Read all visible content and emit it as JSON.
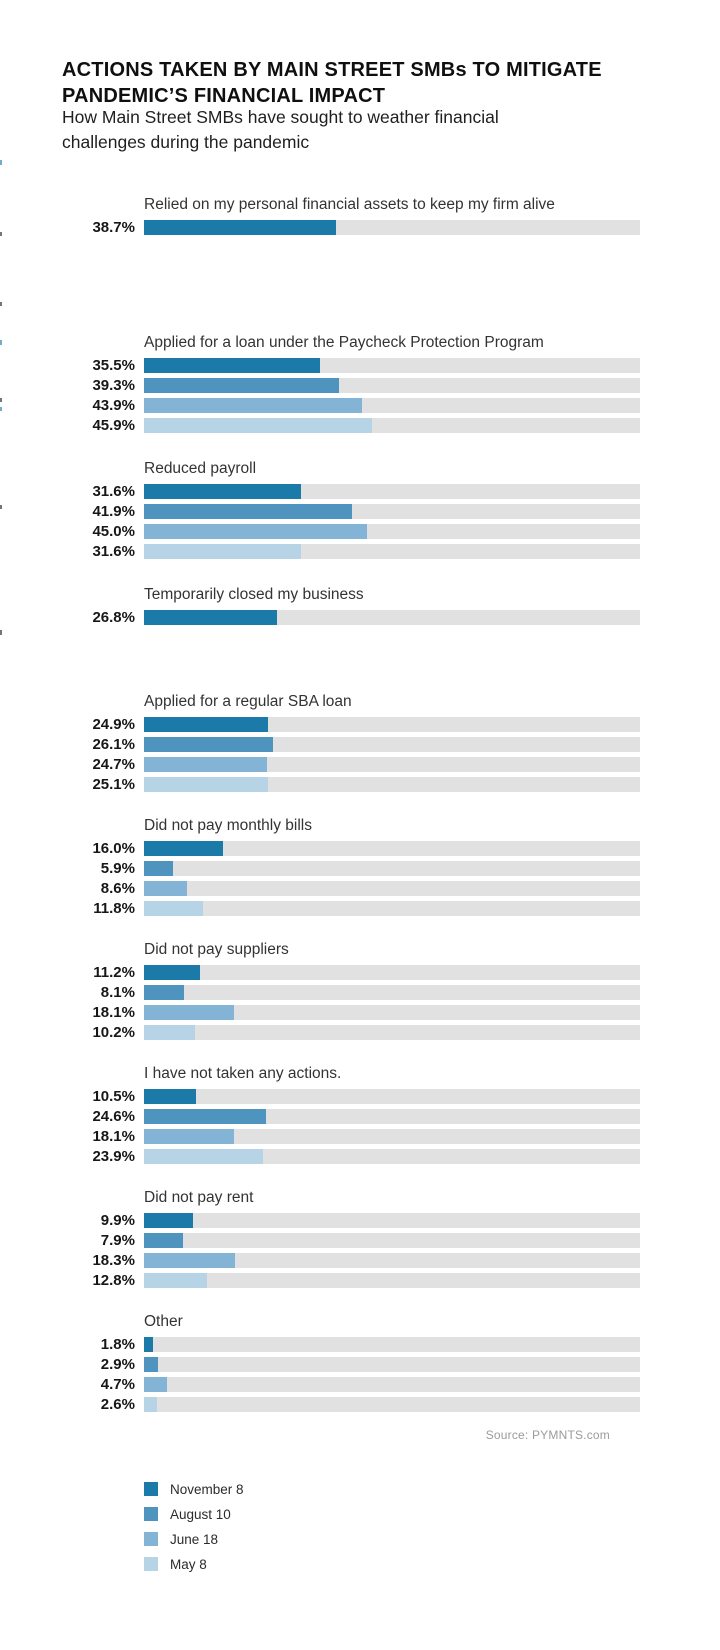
{
  "header": {
    "title_line1": "ACTIONS TAKEN BY MAIN STREET SMBs TO MITIGATE",
    "title_line2": "PANDEMIC’S FINANCIAL IMPACT",
    "subtitle_line1": "How Main Street SMBs have sought to weather financial",
    "subtitle_line2": "challenges during the pandemic"
  },
  "source": "Source: PYMNTS.com",
  "legend": {
    "items": [
      {
        "label": "November 8",
        "color": "#1b7aa8"
      },
      {
        "label": "August 10",
        "color": "#4e94be"
      },
      {
        "label": "June 18",
        "color": "#83b4d6"
      },
      {
        "label": "May 8",
        "color": "#b7d3e6"
      }
    ]
  },
  "chart_data": {
    "type": "bar",
    "orientation": "horizontal",
    "title": "Actions taken by Main Street SMBs to mitigate pandemic's financial impact",
    "value_axis": {
      "min": 0,
      "max": 100,
      "unit": "%"
    },
    "track_color": "#e1e1e1",
    "series": [
      "November 8",
      "August 10",
      "June 18",
      "May 8"
    ],
    "groups": [
      {
        "label": "Relied on my personal financial assets to keep my firm alive",
        "bars": [
          {
            "series": "November 8",
            "value": 38.7,
            "display": "38.7%"
          }
        ]
      },
      {
        "label": "Applied for a loan under the Paycheck Protection Program",
        "bars": [
          {
            "series": "November 8",
            "value": 35.5,
            "display": "35.5%"
          },
          {
            "series": "August 10",
            "value": 39.3,
            "display": "39.3%"
          },
          {
            "series": "June 18",
            "value": 43.9,
            "display": "43.9%"
          },
          {
            "series": "May 8",
            "value": 45.9,
            "display": "45.9%"
          }
        ]
      },
      {
        "label": "Reduced payroll",
        "bars": [
          {
            "series": "November 8",
            "value": 31.6,
            "display": "31.6%"
          },
          {
            "series": "August 10",
            "value": 41.9,
            "display": "41.9%"
          },
          {
            "series": "June 18",
            "value": 45.0,
            "display": "45.0%"
          },
          {
            "series": "May 8",
            "value": 31.6,
            "display": "31.6%"
          }
        ]
      },
      {
        "label": "Temporarily closed my business",
        "bars": [
          {
            "series": "November 8",
            "value": 26.8,
            "display": "26.8%"
          }
        ]
      },
      {
        "label": "Applied for a regular SBA loan",
        "bars": [
          {
            "series": "November 8",
            "value": 24.9,
            "display": "24.9%"
          },
          {
            "series": "August 10",
            "value": 26.1,
            "display": "26.1%"
          },
          {
            "series": "June 18",
            "value": 24.7,
            "display": "24.7%"
          },
          {
            "series": "May 8",
            "value": 25.1,
            "display": "25.1%"
          }
        ]
      },
      {
        "label": "Did not pay monthly bills",
        "bars": [
          {
            "series": "November 8",
            "value": 16.0,
            "display": "16.0%"
          },
          {
            "series": "August 10",
            "value": 5.9,
            "display": "5.9%"
          },
          {
            "series": "June 18",
            "value": 8.6,
            "display": "8.6%"
          },
          {
            "series": "May 8",
            "value": 11.8,
            "display": "11.8%"
          }
        ]
      },
      {
        "label": "Did not pay suppliers",
        "bars": [
          {
            "series": "November 8",
            "value": 11.2,
            "display": "11.2%"
          },
          {
            "series": "August 10",
            "value": 8.1,
            "display": "8.1%"
          },
          {
            "series": "June 18",
            "value": 18.1,
            "display": "18.1%"
          },
          {
            "series": "May 8",
            "value": 10.2,
            "display": "10.2%"
          }
        ]
      },
      {
        "label": "I have not taken any actions.",
        "bars": [
          {
            "series": "November 8",
            "value": 10.5,
            "display": "10.5%"
          },
          {
            "series": "August 10",
            "value": 24.6,
            "display": "24.6%"
          },
          {
            "series": "June 18",
            "value": 18.1,
            "display": "18.1%"
          },
          {
            "series": "May 8",
            "value": 23.9,
            "display": "23.9%"
          }
        ]
      },
      {
        "label": "Did not pay rent",
        "bars": [
          {
            "series": "November 8",
            "value": 9.9,
            "display": "9.9%"
          },
          {
            "series": "August 10",
            "value": 7.9,
            "display": "7.9%"
          },
          {
            "series": "June 18",
            "value": 18.3,
            "display": "18.3%"
          },
          {
            "series": "May 8",
            "value": 12.8,
            "display": "12.8%"
          }
        ]
      },
      {
        "label": "Other",
        "bars": [
          {
            "series": "November 8",
            "value": 1.8,
            "display": "1.8%"
          },
          {
            "series": "August 10",
            "value": 2.9,
            "display": "2.9%"
          },
          {
            "series": "June 18",
            "value": 4.7,
            "display": "4.7%"
          },
          {
            "series": "May 8",
            "value": 2.6,
            "display": "2.6%"
          }
        ]
      }
    ]
  }
}
